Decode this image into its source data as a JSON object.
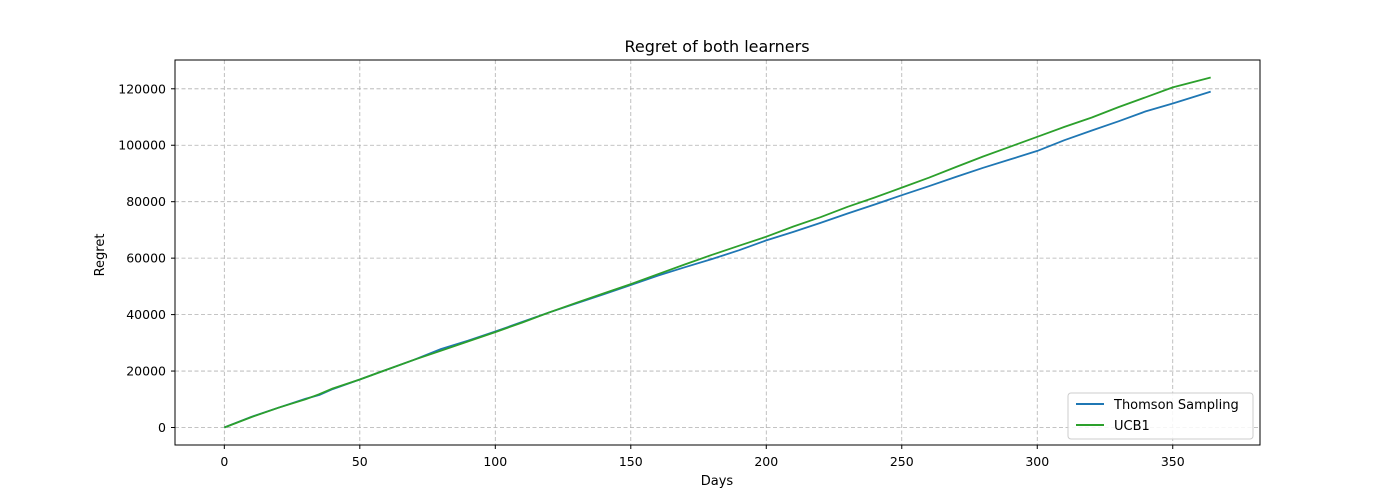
{
  "chart_data": {
    "type": "line",
    "title": "Regret of both learners",
    "xlabel": "Days",
    "ylabel": "Regret",
    "xlim": [
      -18.2,
      382.2
    ],
    "ylim": [
      -6200,
      130200
    ],
    "xticks": [
      0,
      50,
      100,
      150,
      200,
      250,
      300,
      350
    ],
    "yticks": [
      0,
      20000,
      40000,
      60000,
      80000,
      100000,
      120000
    ],
    "grid": true,
    "legend_position": "lower right",
    "series": [
      {
        "name": "Thomson Sampling",
        "color": "#1f77b4",
        "x": [
          0,
          10,
          20,
          30,
          35,
          40,
          50,
          60,
          70,
          80,
          90,
          100,
          110,
          120,
          130,
          140,
          150,
          160,
          170,
          180,
          190,
          200,
          210,
          220,
          230,
          240,
          250,
          260,
          270,
          280,
          290,
          300,
          310,
          320,
          330,
          340,
          350,
          364
        ],
        "y": [
          0,
          3800,
          7000,
          10200,
          11500,
          13600,
          17000,
          20500,
          24000,
          27800,
          30800,
          34000,
          37400,
          40800,
          44000,
          47200,
          50500,
          53800,
          56800,
          59700,
          62800,
          66300,
          69300,
          72500,
          75800,
          79000,
          82300,
          85500,
          88800,
          92000,
          95000,
          98000,
          101800,
          105200,
          108500,
          112000,
          114800,
          119000
        ]
      },
      {
        "name": "UCB1",
        "color": "#2ca02c",
        "x": [
          0,
          10,
          20,
          30,
          35,
          40,
          50,
          60,
          70,
          80,
          90,
          100,
          110,
          120,
          130,
          140,
          150,
          160,
          170,
          180,
          190,
          200,
          210,
          220,
          230,
          240,
          250,
          260,
          270,
          280,
          290,
          300,
          310,
          320,
          330,
          340,
          350,
          364
        ],
        "y": [
          0,
          3700,
          7000,
          10000,
          11800,
          13800,
          17000,
          20500,
          24000,
          27200,
          30500,
          33800,
          37200,
          40800,
          44200,
          47500,
          50800,
          54300,
          57800,
          61200,
          64400,
          67600,
          71200,
          74500,
          78200,
          81500,
          85000,
          88500,
          92300,
          96000,
          99500,
          103000,
          106500,
          109800,
          113500,
          117000,
          120500,
          124000
        ]
      }
    ]
  }
}
